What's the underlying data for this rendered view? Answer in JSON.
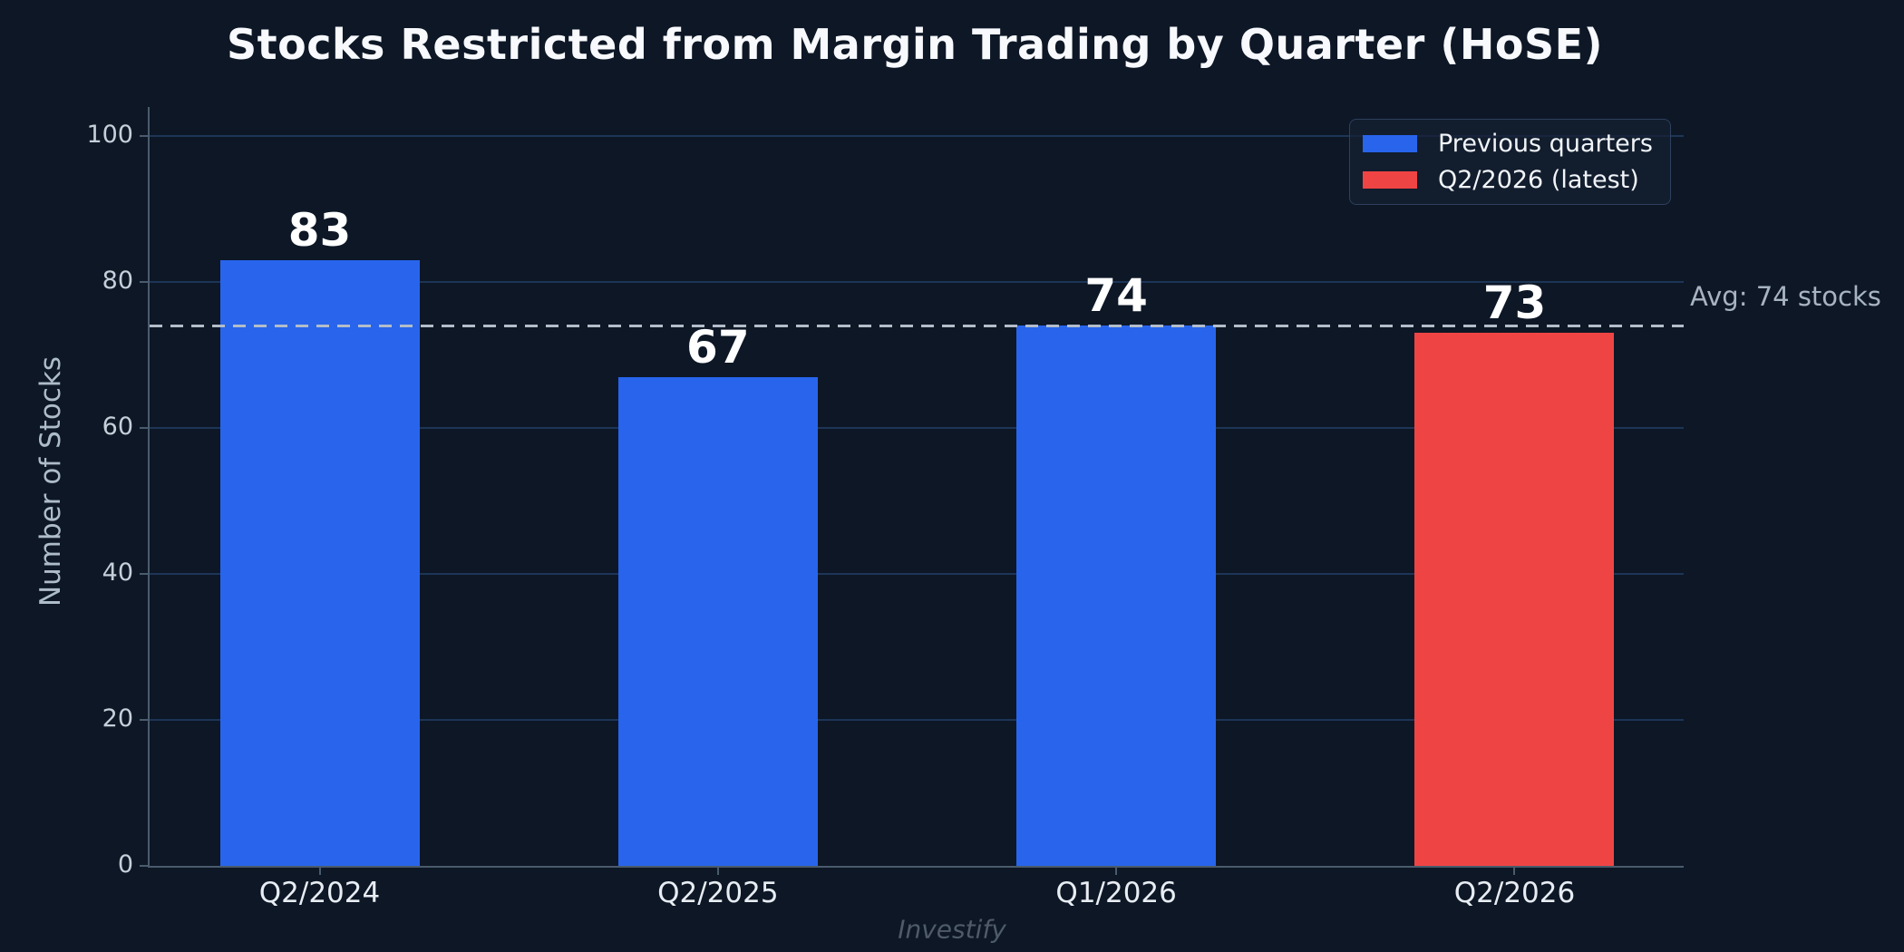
{
  "title": "Stocks Restricted from Margin Trading by Quarter (HoSE)",
  "watermark": "Investify",
  "axes": {
    "ylabel": "Number of Stocks",
    "ytick_labels": [
      "0",
      "20",
      "40",
      "60",
      "80",
      "100"
    ],
    "xtick_labels": [
      "Q2/2024",
      "Q2/2025",
      "Q1/2026",
      "Q2/2026"
    ]
  },
  "average": {
    "value": 74,
    "label": "Avg: 74 stocks"
  },
  "legend": {
    "items": [
      {
        "label": "Previous quarters",
        "color": "#2865ec"
      },
      {
        "label": "Q2/2026 (latest)",
        "color": "#ef4444"
      }
    ]
  },
  "colors": {
    "background": "#0d1726",
    "bar_previous": "#2865ec",
    "bar_latest": "#ef4444",
    "gridline": "#1d3556",
    "axis_spine": "#4a5b6d",
    "avg_line": "#b2bdc9",
    "avg_label": "#a7b3c1",
    "title": "#f7f9fc",
    "y_tick_label": "#c5cfda",
    "x_tick_label": "#e8edf3",
    "value_label": "#ffffff",
    "watermark": "#4f5b68"
  },
  "chart_data": {
    "type": "bar",
    "title": "Stocks Restricted from Margin Trading by Quarter (HoSE)",
    "categories": [
      "Q2/2024",
      "Q2/2025",
      "Q1/2026",
      "Q2/2026"
    ],
    "values": [
      83,
      67,
      74,
      73
    ],
    "value_labels": [
      "83",
      "67",
      "74",
      "73"
    ],
    "bar_colors": [
      "#2865ec",
      "#2865ec",
      "#2865ec",
      "#ef4444"
    ],
    "xlabel": "",
    "ylabel": "Number of Stocks",
    "ylim": [
      0,
      100
    ],
    "yticks": [
      0,
      20,
      40,
      60,
      80,
      100
    ],
    "grid": true,
    "legend_position": "upper right",
    "legend": [
      {
        "name": "Previous quarters",
        "color": "#2865ec"
      },
      {
        "name": "Q2/2026 (latest)",
        "color": "#ef4444"
      }
    ],
    "average_line": {
      "value": 74,
      "label": "Avg: 74 stocks",
      "style": "dashed"
    }
  }
}
